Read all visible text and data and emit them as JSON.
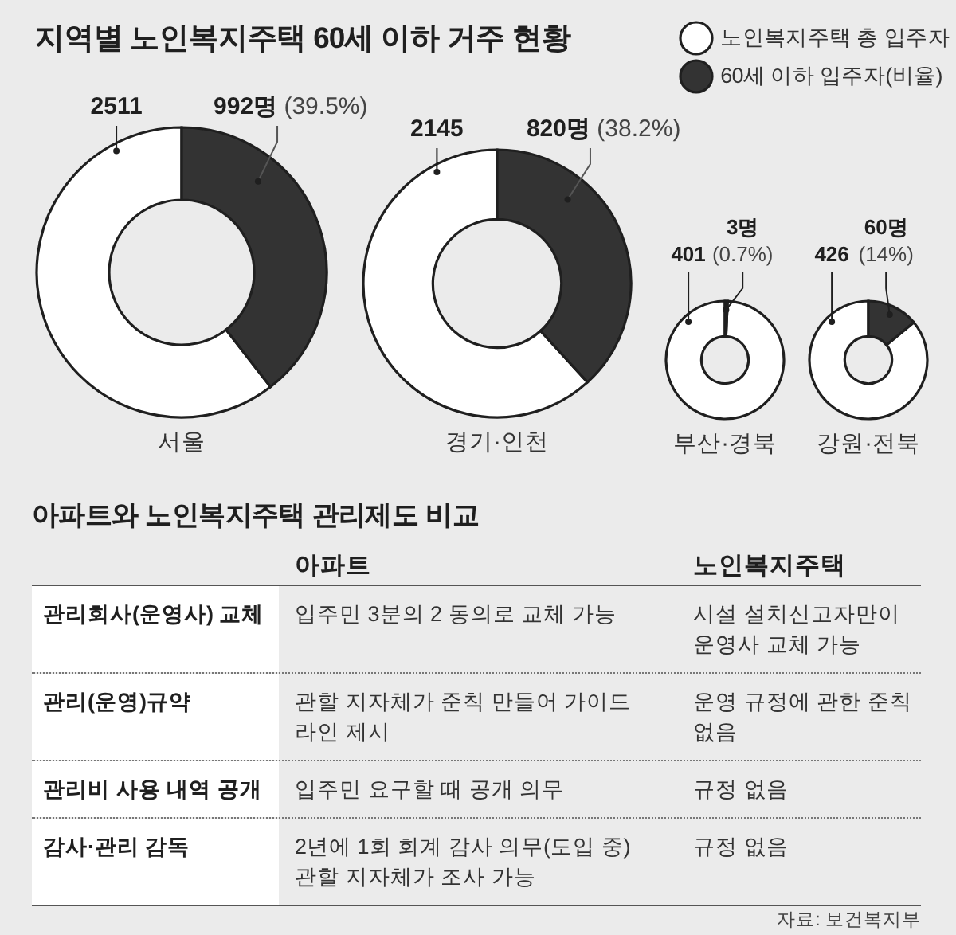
{
  "chart_data": [
    {
      "type": "donut",
      "title": "지역별 노인복지주택 60세 이하 거주 현황",
      "xlabel": "서울",
      "categories": [
        "노인복지주택 총 입주자",
        "60세 이하 입주자(비율)"
      ],
      "values": [
        60.5,
        39.5
      ],
      "colors": [
        "#ffffff",
        "#333333"
      ],
      "annotations": [
        "2511",
        "992명 (39.5%)"
      ],
      "legend": "top right"
    },
    {
      "type": "donut",
      "xlabel": "경기·인천",
      "values": [
        61.8,
        38.2
      ],
      "colors": [
        "#ffffff",
        "#333333"
      ],
      "annotations": [
        "2145",
        "820명 (38.2%)"
      ]
    },
    {
      "type": "donut",
      "xlabel": "부산·경북",
      "values": [
        99.3,
        0.7
      ],
      "colors": [
        "#ffffff",
        "#333333"
      ],
      "annotations": [
        "401",
        "3명 (0.7%)"
      ]
    },
    {
      "type": "donut",
      "xlabel": "강원·전북",
      "values": [
        86,
        14
      ],
      "colors": [
        "#ffffff",
        "#333333"
      ],
      "annotations": [
        "426",
        "60명 (14%)"
      ]
    },
    {
      "type": "other",
      "title": "아파트와 노인복지주택 관리제도 비교",
      "categories": [
        "아파트",
        "노인복지주택"
      ],
      "y_categories": [
        "관리회사(운영사) 교체",
        "관리(운영)규약",
        "관리비 사용 내역 공개",
        "감사·관리 감독"
      ],
      "cell_labels": [
        [
          "입주민 3분의 2 동의로 교체 가능",
          "시설 설치신고자만이 운영사 교체 가능"
        ],
        [
          "관할 지자체가 준칙 만들어 가이드 라인 제시",
          "운영 규정에 관한 준칙 없음"
        ],
        [
          "입주민 요구할 때 공개 의무",
          "규정 없음"
        ],
        [
          "2년에 1회 회계 감사 의무(도입 중) 관할 지자체가 조사 가능",
          "규정 없음"
        ]
      ],
      "annotations": [
        "자료: 보건복지부"
      ]
    }
  ]
}
